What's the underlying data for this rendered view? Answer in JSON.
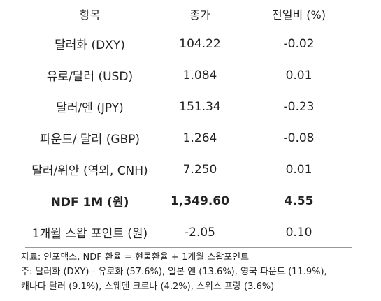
{
  "table": {
    "headers": [
      "항목",
      "종가",
      "전일비 (%)"
    ],
    "rows": [
      {
        "item": "달러화 (DXY)",
        "close": "104.22",
        "change": "-0.02",
        "bold": false
      },
      {
        "item": "유로/달러 (USD)",
        "close": "1.084",
        "change": "0.01",
        "bold": false
      },
      {
        "item": "달러/엔 (JPY)",
        "close": "151.34",
        "change": "-0.23",
        "bold": false
      },
      {
        "item": "파운드/ 달러 (GBP)",
        "close": "1.264",
        "change": "-0.08",
        "bold": false
      },
      {
        "item": "달러/위안 (역외, CNH)",
        "close": "7.250",
        "change": "0.01",
        "bold": false
      },
      {
        "item": "NDF 1M (원)",
        "close": "1,349.60",
        "change": "4.55",
        "bold": true
      },
      {
        "item": "1개월 스왑 포인트 (원)",
        "close": "-2.05",
        "change": "0.10",
        "bold": false
      }
    ]
  },
  "notes": {
    "source": "자료: 인포맥스, NDF 환율 = 현물환율 + 1개월 스왑포인트",
    "note_line1": "주: 달러화 (DXY) - 유로화 (57.6%), 일본 엔 (13.6%), 영국 파운드 (11.9%),",
    "note_line2": "캐나다 달러 (9.1%), 스웨덴 크로나 (4.2%), 스위스 프랑 (3.6%)"
  }
}
